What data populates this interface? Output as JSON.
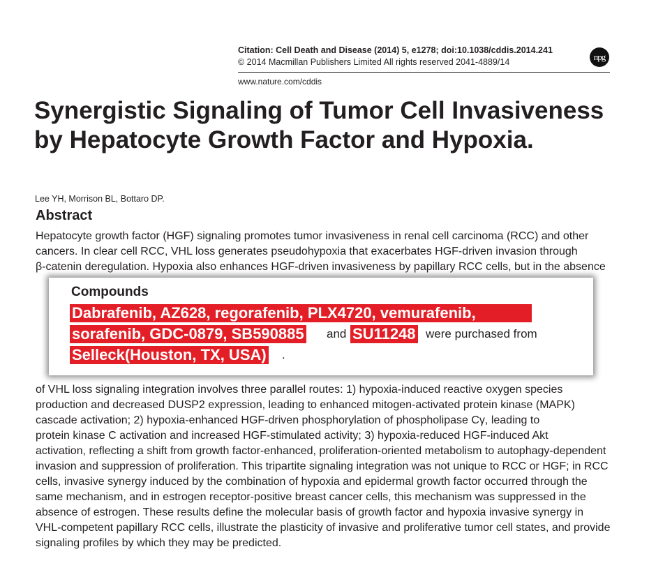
{
  "header": {
    "citation": "Citation: Cell Death and Disease (2014) 5, e1278; doi:10.1038/cddis.2014.241",
    "copyright": "© 2014 Macmillan Publishers Limited   All rights reserved 2041-4889/14",
    "url": "www.nature.com/cddis",
    "logo": "npg"
  },
  "title": "Synergistic Signaling of Tumor Cell Invasiveness by Hepatocyte Growth Factor and Hypoxia.",
  "authors": "Lee YH, Morrison BL, Bottaro DP.",
  "abstract_heading": "Abstract",
  "abstract_lines": [
    "Hepatocyte growth factor (HGF) signaling promotes tumor invasiveness in renal cell carcinoma (RCC) and other",
    "cancers. In clear cell RCC, VHL loss generates pseudohypoxia that exacerbates HGF-driven invasion through",
    "β-catenin deregulation. Hypoxia also enhances HGF-driven invasiveness by papillary RCC cells, but in the absence",
    "of VHL loss signaling integration involves three parallel routes: 1) hypoxia-induced reactive oxygen species",
    "production and decreased DUSP2 expression, leading to enhanced mitogen-activated protein kinase (MAPK)",
    "cascade activation; 2) hypoxia-enhanced HGF-driven phosphorylation of phospholipase Cγ, leading to",
    "protein kinase C activation and increased HGF-stimulated activity; 3) hypoxia-reduced HGF-induced Akt",
    "activation, reflecting a shift from growth factor-enhanced, proliferation-oriented metabolism to autophagy-dependent",
    "invasion and suppression of proliferation. This tripartite signaling integration was not unique to RCC or HGF; in RCC",
    "cells, invasive synergy induced by the combination of hypoxia and epidermal growth factor occurred through the",
    "same mechanism, and in estrogen receptor-positive breast cancer cells, this mechanism was suppressed in the",
    "absence of estrogen. These results define the molecular basis of growth factor and hypoxia invasive synergy in",
    "VHL-competent papillary RCC cells, illustrate the plasticity of invasive and proliferative tumor cell states, and provide",
    "signaling profiles by which they may be predicted."
  ],
  "overlay": {
    "heading": "Compounds",
    "line1": "Dabrafenib, AZ628, regorafenib, PLX4720, vemurafenib,",
    "line2a": "sorafenib, GDC-0879, SB590885",
    "and": "and",
    "line2b": "SU11248",
    "purchased": "were purchased from",
    "line3": "Selleck(Houston, TX, USA)",
    "period": "."
  },
  "colors": {
    "highlight": "#e41e26",
    "text": "#231f20"
  }
}
